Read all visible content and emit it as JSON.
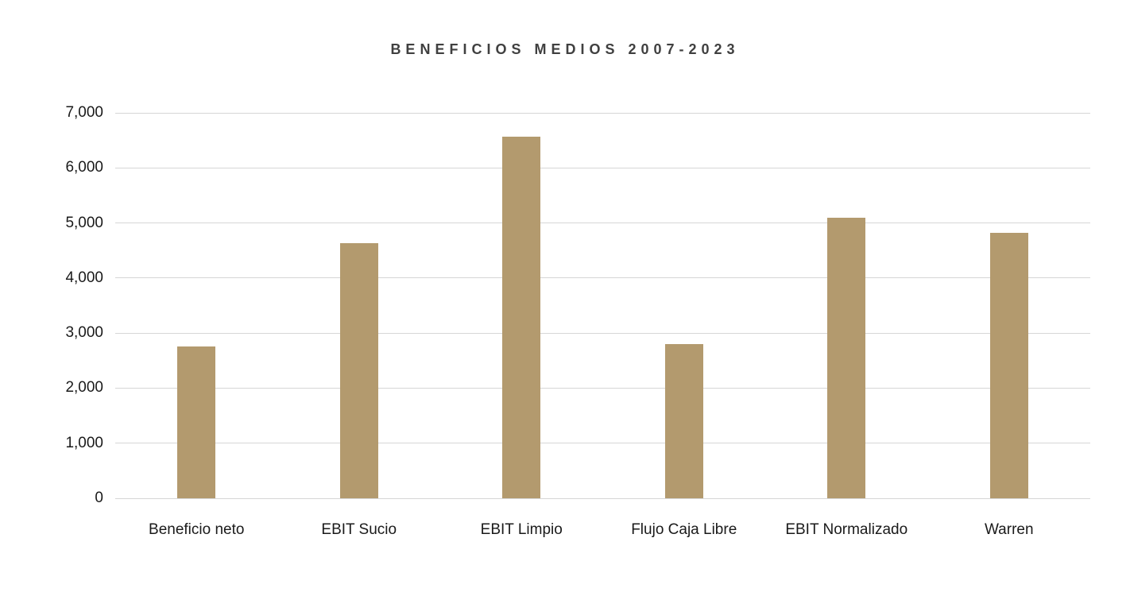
{
  "chart_data": {
    "type": "bar",
    "title": "BENEFICIOS MEDIOS 2007-2023",
    "categories": [
      "Beneficio neto",
      "EBIT Sucio",
      "EBIT Limpio",
      "Flujo Caja Libre",
      "EBIT Normalizado",
      "Warren"
    ],
    "values": [
      2750,
      4630,
      6570,
      2800,
      5100,
      4820
    ],
    "xlabel": "",
    "ylabel": "",
    "ylim": [
      0,
      7000
    ],
    "y_ticks": [
      0,
      1000,
      2000,
      3000,
      4000,
      5000,
      6000,
      7000
    ],
    "y_tick_labels": [
      "0",
      "1,000",
      "2,000",
      "3,000",
      "4,000",
      "5,000",
      "6,000",
      "7,000"
    ],
    "grid": true,
    "legend": false,
    "colors": {
      "bar": "#b39a6e",
      "gridline": "#d6d6d6",
      "title": "#404040",
      "axis_text": "#1a1a1a",
      "background": "#ffffff"
    }
  }
}
